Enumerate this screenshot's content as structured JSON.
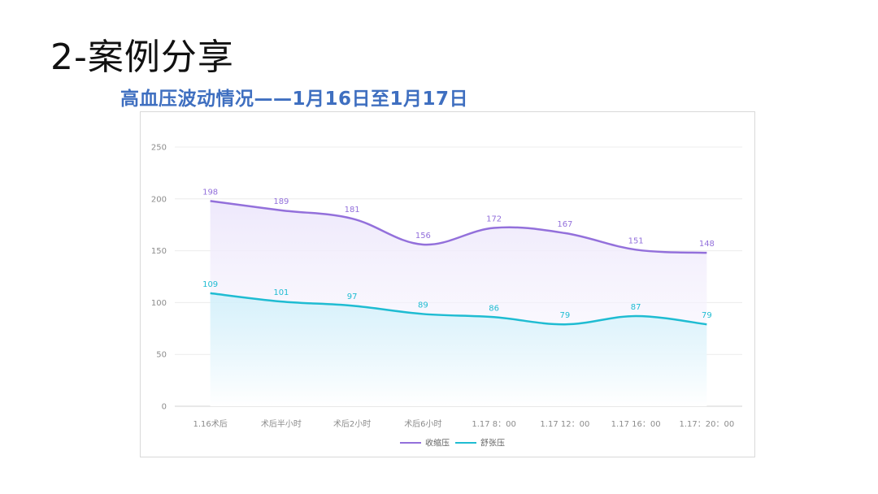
{
  "slide": {
    "title": "2-案例分享",
    "chart_heading": "高血压波动情况——1月16日至1月17日"
  },
  "chart_data": {
    "type": "line",
    "categories": [
      "1.16术后",
      "术后半小时",
      "术后2小时",
      "术后6小时",
      "1.17 8：00",
      "1.17 12：00",
      "1.17 16：00",
      "1.17：20：00"
    ],
    "series": [
      {
        "name": "收缩压",
        "values": [
          198,
          189,
          181,
          156,
          172,
          167,
          151,
          148
        ],
        "color": "#9370db"
      },
      {
        "name": "舒张压",
        "values": [
          109,
          101,
          97,
          89,
          86,
          79,
          87,
          79
        ],
        "color": "#1fbcd2"
      }
    ],
    "ylim": [
      0,
      250
    ],
    "yticks": [
      0,
      50,
      100,
      150,
      200,
      250
    ],
    "grid": true,
    "smooth": true,
    "area_fill": true,
    "legend_position": "bottom-center"
  }
}
